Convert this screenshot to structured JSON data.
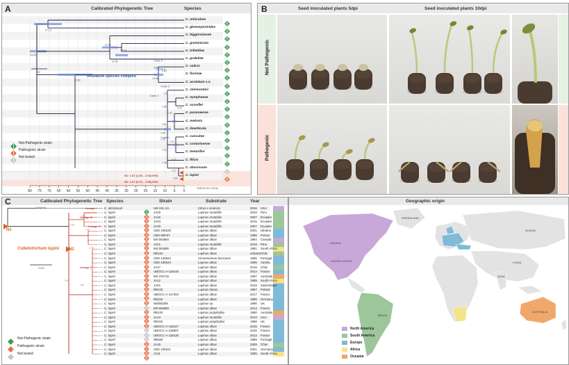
{
  "panelA": {
    "label": "A",
    "title": "Calibrated Phylogenetic Tree",
    "species_header": "Species",
    "species": [
      {
        "name": "C. orbiculare",
        "status": "not_pathogenic"
      },
      {
        "name": "C. gloeosporioides",
        "status": "not_pathogenic"
      },
      {
        "name": "C. higginsianum",
        "status": "not_pathogenic"
      },
      {
        "name": "C. graminicola",
        "status": "not_pathogenic"
      },
      {
        "name": "C. tofieldiae",
        "status": "not_pathogenic"
      },
      {
        "name": "C. godetiae",
        "status": "not_pathogenic"
      },
      {
        "name": "C. salicis",
        "status": "not_pathogenic"
      },
      {
        "name": "C. fiorinae",
        "status": "not_pathogenic"
      },
      {
        "name": "C. acutatum s.s.",
        "status": "not_pathogenic"
      },
      {
        "name": "C. simmondsii",
        "status": "not_pathogenic"
      },
      {
        "name": "C. nymphaeae",
        "status": "not_pathogenic"
      },
      {
        "name": "C. scovillei",
        "status": "not_pathogenic"
      },
      {
        "name": "C. paranaense",
        "status": "not_pathogenic"
      },
      {
        "name": "C. melonis",
        "status": "not_pathogenic"
      },
      {
        "name": "C. limetticola",
        "status": "not_pathogenic"
      },
      {
        "name": "C. cuscutae",
        "status": "not_pathogenic"
      },
      {
        "name": "C. costaricense",
        "status": "not_pathogenic"
      },
      {
        "name": "C. tamarilloi",
        "status": "not_pathogenic"
      },
      {
        "name": "C. filicis",
        "status": "not_pathogenic"
      },
      {
        "name": "C. abscissum",
        "status": "not_tested"
      },
      {
        "name": "C. lupini",
        "status": "pathogenic"
      }
    ],
    "node_ages": [
      "67.13",
      "24.43",
      "37.30",
      "32.60",
      "18.00",
      "52.69",
      "13.56",
      "6.80",
      "5.60",
      "1.63",
      "2.88",
      "1.02",
      "0.29",
      "3.81",
      "1.84",
      "1.05",
      "2.3",
      "1.52",
      "1.27",
      "1.18",
      "4.17",
      "2.89"
    ],
    "clades": [
      "Clade 5",
      "Clade 4",
      "Clade 3",
      "Clade 2",
      "Clade 1"
    ],
    "complex_label": "Acutatum species complex",
    "scale_label": "8.0",
    "n1_label": "N1: 1.87 (1.38 – 2.52) MYA",
    "n2_label": "N2: 1.67 (0.73 – 1.55) MYA",
    "axis_ticks": [
      "80",
      "75",
      "70",
      "65",
      "60",
      "55",
      "50",
      "45",
      "40",
      "35",
      "30",
      "25",
      "20",
      "15",
      "10",
      "5",
      "0"
    ],
    "axis_label": "TIMESCALE (MYA)",
    "legend": {
      "not_pathogenic": "Not-Pathogenic strain",
      "pathogenic": "Pathogenic strain",
      "not_tested": "Not tested"
    }
  },
  "panelB": {
    "label": "B",
    "col1": "Seed inoculated plants 5dpi",
    "col2": "Seed inoculated plants 10dpi",
    "row1": "Not Pathogenic",
    "row2": "Pathogenic"
  },
  "panelC": {
    "label": "C",
    "title": "Calibrated Phylogenetic Tree",
    "headers": {
      "species": "Species",
      "strain": "Strain",
      "substrate": "Substrate",
      "year": "Year"
    },
    "outgroup": "Outgroup",
    "lineages": [
      "Lineage I",
      "Lineage II",
      "Lineage III",
      "Lineage IV"
    ],
    "node_n1": "N1",
    "node_n2": "N2",
    "clade_name": "Colletotrichum lupini",
    "scale": "0.002",
    "support": [
      "1.00",
      "1.00",
      "1.00",
      "1.00",
      "1.00",
      "1.00"
    ],
    "rows": [
      {
        "species": "C. abscissum",
        "strain": "LW-VAL-2A",
        "substrate": "Citrus x sinensis",
        "year": "2016",
        "country": "USA",
        "status": "not_pathogenic",
        "region": "north_america"
      },
      {
        "species": "C. lupini",
        "strain": "JA20",
        "substrate": "Lupinus mutabilis",
        "year": "2019",
        "country": "Peru",
        "status": "pathogenic",
        "region": "south_america"
      },
      {
        "species": "C. lupini",
        "strain": "JA18",
        "substrate": "Lupinus mutabilis",
        "year": "2007",
        "country": "Ecuador",
        "status": "pathogenic",
        "region": "south_america"
      },
      {
        "species": "C. lupini",
        "strain": "JA23",
        "substrate": "Lupinus mutabilis",
        "year": "2015",
        "country": "Ecuador",
        "status": "pathogenic",
        "region": "south_america"
      },
      {
        "species": "C. lupini",
        "strain": "JA19",
        "substrate": "Lupinus mutabilis",
        "year": "2007",
        "country": "Ecuador",
        "status": "pathogenic",
        "region": "south_america"
      },
      {
        "species": "C. lupini",
        "strain": "CBS 109225",
        "substrate": "Lupinus albus",
        "year": "2001",
        "country": "Ukraine",
        "status": "pathogenic",
        "region": "europe"
      },
      {
        "species": "C. lupini",
        "strain": "CBS 509.97",
        "substrate": "Lupinus albus",
        "year": "1996",
        "country": "France",
        "status": "pathogenic",
        "region": "europe"
      },
      {
        "species": "C. lupini",
        "strain": "IMI 504884",
        "substrate": "Lupinus albus",
        "year": "1994",
        "country": "Canada",
        "status": "pathogenic",
        "region": "north_america"
      },
      {
        "species": "C. lupini",
        "strain": "JA21",
        "substrate": "Lupinus mutabilis",
        "year": "2019",
        "country": "Peru",
        "status": "pathogenic",
        "region": "south_america"
      },
      {
        "species": "C. lupini",
        "strain": "IMI 504885",
        "substrate": "Lupinus albus",
        "year": "1991",
        "country": "South Africa",
        "status": "pathogenic",
        "region": "africa"
      },
      {
        "species": "C. lupini",
        "strain": "RB124",
        "substrate": "Lupinus albus",
        "year": "unkown",
        "country": "Chile",
        "status": "pathogenic",
        "region": "south_america"
      },
      {
        "species": "C. lupini",
        "strain": "CBS 129944",
        "substrate": "Cinnamomum burmanni",
        "year": "1996",
        "country": "Portugal",
        "status": "pathogenic",
        "region": "europe"
      },
      {
        "species": "C. lupini",
        "strain": "CBS 109224",
        "substrate": "Lupinus albus",
        "year": "1995",
        "country": "Austria",
        "status": "pathogenic",
        "region": "europe"
      },
      {
        "species": "C. lupini",
        "strain": "JA17",
        "substrate": "Lupinus albus",
        "year": "2015",
        "country": "Chile",
        "status": "pathogenic",
        "region": "south_america"
      },
      {
        "species": "C. lupini",
        "strain": "UBOCC-A-118146",
        "substrate": "Lupinus albus",
        "year": "2014",
        "country": "France",
        "status": "pathogenic",
        "region": "europe"
      },
      {
        "species": "C. lupini",
        "strain": "IMI 375715",
        "substrate": "Lupinus albus",
        "year": "1997",
        "country": "Australia",
        "status": "pathogenic",
        "region": "oceania"
      },
      {
        "species": "C. lupini",
        "strain": "JA12",
        "substrate": "Lupinus albus",
        "year": "1999",
        "country": "South Africa",
        "status": "pathogenic",
        "region": "africa"
      },
      {
        "species": "C. lupini",
        "strain": "JA01",
        "substrate": "Lupinus albus",
        "year": "2018",
        "country": "Switzerland",
        "status": "pathogenic",
        "region": "europe"
      },
      {
        "species": "C. lupini",
        "strain": "RB122",
        "substrate": "Lupinus luteus",
        "year": "1997",
        "country": "Poland",
        "status": "pathogenic",
        "region": "europe"
      },
      {
        "species": "C. lupini",
        "strain": "UBOCC-A-117294",
        "substrate": "Lupinus albus",
        "year": "2017",
        "country": "France",
        "status": "pathogenic",
        "region": "europe"
      },
      {
        "species": "C. lupini",
        "strain": "RB119",
        "substrate": "Lupinus albus",
        "year": "1995",
        "country": "Germany",
        "status": "pathogenic",
        "region": "europe"
      },
      {
        "species": "C. lupini",
        "strain": "IMI350308",
        "substrate": "Lupinus sp.",
        "year": "1996",
        "country": "UK",
        "status": "not_tested",
        "region": "europe"
      },
      {
        "species": "C. lupini",
        "strain": "IMI 504893",
        "substrate": "Lupinus albus",
        "year": "2014",
        "country": "France",
        "status": "pathogenic",
        "region": "europe"
      },
      {
        "species": "C. lupini",
        "strain": "RB120",
        "substrate": "Lupinus polyphyllus",
        "year": "1990",
        "country": "Australia",
        "status": "pathogenic",
        "region": "oceania"
      },
      {
        "species": "C. lupini",
        "strain": "JA13",
        "substrate": "Lupinus mutabilis",
        "year": "2013",
        "country": "USA",
        "status": "pathogenic",
        "region": "north_america"
      },
      {
        "species": "C. lupini",
        "strain": "RB116",
        "substrate": "Lupinus polyphyllus",
        "year": "1998",
        "country": "UK",
        "status": "pathogenic",
        "region": "europe"
      },
      {
        "species": "C. lupini",
        "strain": "UBOCC-A-118147",
        "substrate": "Lupinus albus",
        "year": "2015",
        "country": "France",
        "status": "not_tested",
        "region": "europe"
      },
      {
        "species": "C. lupini",
        "strain": "UBOCC-A-118097",
        "substrate": "Lupinus albus",
        "year": "2015",
        "country": "France",
        "status": "not_tested",
        "region": "europe"
      },
      {
        "species": "C. lupini",
        "strain": "UBOCC-A-118136",
        "substrate": "Lupinus albus",
        "year": "2014",
        "country": "France",
        "status": "not_tested",
        "region": "europe"
      },
      {
        "species": "C. lupini",
        "strain": "RB020",
        "substrate": "Lupinus albus",
        "year": "1999",
        "country": "Portugal",
        "status": "pathogenic",
        "region": "europe"
      },
      {
        "species": "C. lupini",
        "strain": "JA15",
        "substrate": "Lupinus albus",
        "year": "2009",
        "country": "Chile",
        "status": "pathogenic",
        "region": "south_america"
      },
      {
        "species": "C. lupini",
        "strain": "CBS 109221",
        "substrate": "Lupinus albus",
        "year": "2001",
        "country": "Germany",
        "status": "pathogenic",
        "region": "europe"
      },
      {
        "species": "C. lupini",
        "strain": "JA11",
        "substrate": "Lupinus albus",
        "year": "1995",
        "country": "South Africa",
        "status": "pathogenic",
        "region": "africa"
      }
    ],
    "legend": {
      "not_pathogenic": "Not-Pathogenic strain",
      "pathogenic": "Pathogenic strain",
      "not_tested": "Not tested"
    }
  },
  "panelMap": {
    "title": "Geographic origin",
    "legend": [
      {
        "label": "North America",
        "key": "north_america"
      },
      {
        "label": "South America",
        "key": "south_america"
      },
      {
        "label": "Europe",
        "key": "europe"
      },
      {
        "label": "Africa",
        "key": "africa"
      },
      {
        "label": "Oceania",
        "key": "oceania"
      }
    ],
    "places": [
      "CANADA",
      "UNITED STATES",
      "BRAZIL",
      "RUSSIA",
      "CHINA",
      "INDIA",
      "AUSTRALIA",
      "GREENLAND"
    ]
  },
  "colors": {
    "north_america": "#c8a8d9",
    "south_america": "#9dc69a",
    "europe": "#7fbad6",
    "africa": "#f3e389",
    "oceania": "#f0a86a",
    "pathogenic": "#e8704a",
    "not_pathogenic": "#3f9a4e",
    "not_tested": "#c4c4c4",
    "bar_blue": "#6f8fd8",
    "accent_orange": "#e0601f"
  }
}
